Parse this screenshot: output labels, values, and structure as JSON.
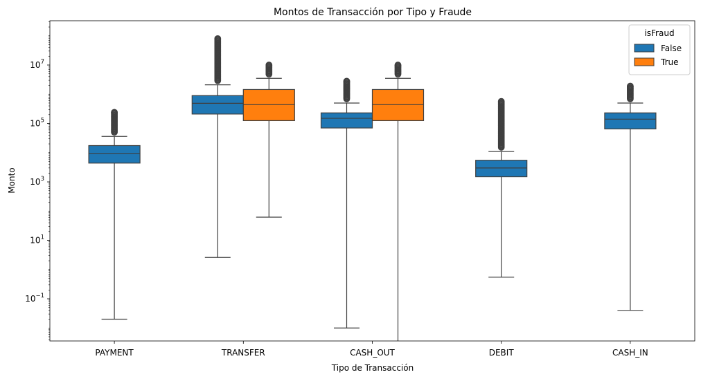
{
  "chart_data": {
    "type": "boxplot",
    "title": "Montos de Transacción por Tipo y Fraude",
    "xlabel": "Tipo de Transacción",
    "ylabel": "Monto",
    "yscale": "log",
    "ylim": [
      0.0025,
      300000000
    ],
    "yticks": [
      {
        "value": 0.1,
        "base": "10",
        "exp": "−1"
      },
      {
        "value": 10,
        "base": "10",
        "exp": "1"
      },
      {
        "value": 1000,
        "base": "10",
        "exp": "3"
      },
      {
        "value": 100000,
        "base": "10",
        "exp": "5"
      },
      {
        "value": 10000000,
        "base": "10",
        "exp": "7"
      }
    ],
    "categories": [
      "PAYMENT",
      "TRANSFER",
      "CASH_OUT",
      "DEBIT",
      "CASH_IN"
    ],
    "legend": {
      "title": "isFraud",
      "position": "top-right"
    },
    "series": [
      {
        "name": "False",
        "color": "#1f77b4",
        "boxes": [
          {
            "category": "PAYMENT",
            "whislo": 0.02,
            "q1": 4400,
            "med": 9500,
            "q3": 17500,
            "whishi": 36000,
            "fliers_max": 240000
          },
          {
            "category": "TRANSFER",
            "whislo": 2.6,
            "q1": 210000,
            "med": 490000,
            "q3": 900000,
            "whishi": 2100000,
            "fliers_max": 80000000
          },
          {
            "category": "CASH_OUT",
            "whislo": 0.01,
            "q1": 70000,
            "med": 150000,
            "q3": 230000,
            "whishi": 500000,
            "fliers_max": 2800000
          },
          {
            "category": "DEBIT",
            "whislo": 0.55,
            "q1": 1500,
            "med": 3000,
            "q3": 5500,
            "whishi": 11000,
            "fliers_max": 570000
          },
          {
            "category": "CASH_IN",
            "whislo": 0.04,
            "q1": 65000,
            "med": 140000,
            "q3": 230000,
            "whishi": 500000,
            "fliers_max": 1900000
          }
        ]
      },
      {
        "name": "True",
        "color": "#ff7f0e",
        "boxes": [
          {
            "category": "TRANSFER",
            "whislo": 62,
            "q1": 125000,
            "med": 440000,
            "q3": 1450000,
            "whishi": 3500000,
            "fliers_max": 10000000
          },
          {
            "category": "CASH_OUT",
            "whislo": 0.0025,
            "q1": 125000,
            "med": 440000,
            "q3": 1450000,
            "whishi": 3500000,
            "fliers_max": 10000000
          }
        ]
      }
    ]
  }
}
